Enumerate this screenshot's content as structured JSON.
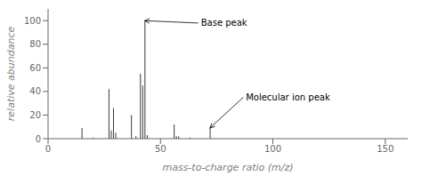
{
  "chart_data": {
    "type": "bar",
    "x": [
      15,
      20,
      27,
      28,
      29,
      30,
      37,
      39,
      41,
      42,
      43,
      44,
      56,
      57,
      58,
      63,
      72
    ],
    "values": [
      9,
      1,
      42,
      7,
      26,
      5,
      20,
      2,
      55,
      45,
      100,
      3,
      12,
      2,
      2,
      1,
      9
    ],
    "color": "#3a3a3a",
    "xlabel": "mass-to-charge ratio (m/z)",
    "ylabel": "relative abundance",
    "xlim": [
      0,
      160
    ],
    "ylim": [
      0,
      110
    ],
    "xticks": [
      0,
      50,
      100,
      150
    ],
    "yticks": [
      0,
      20,
      40,
      60,
      80,
      100
    ],
    "grid": false,
    "annotations": [
      {
        "text": "Base peak",
        "x": 43,
        "y": 100,
        "text_x": 68,
        "text_y": 98
      },
      {
        "text": "Molecular ion peak",
        "x": 72,
        "y": 9,
        "text_x": 88,
        "text_y": 35
      }
    ]
  }
}
